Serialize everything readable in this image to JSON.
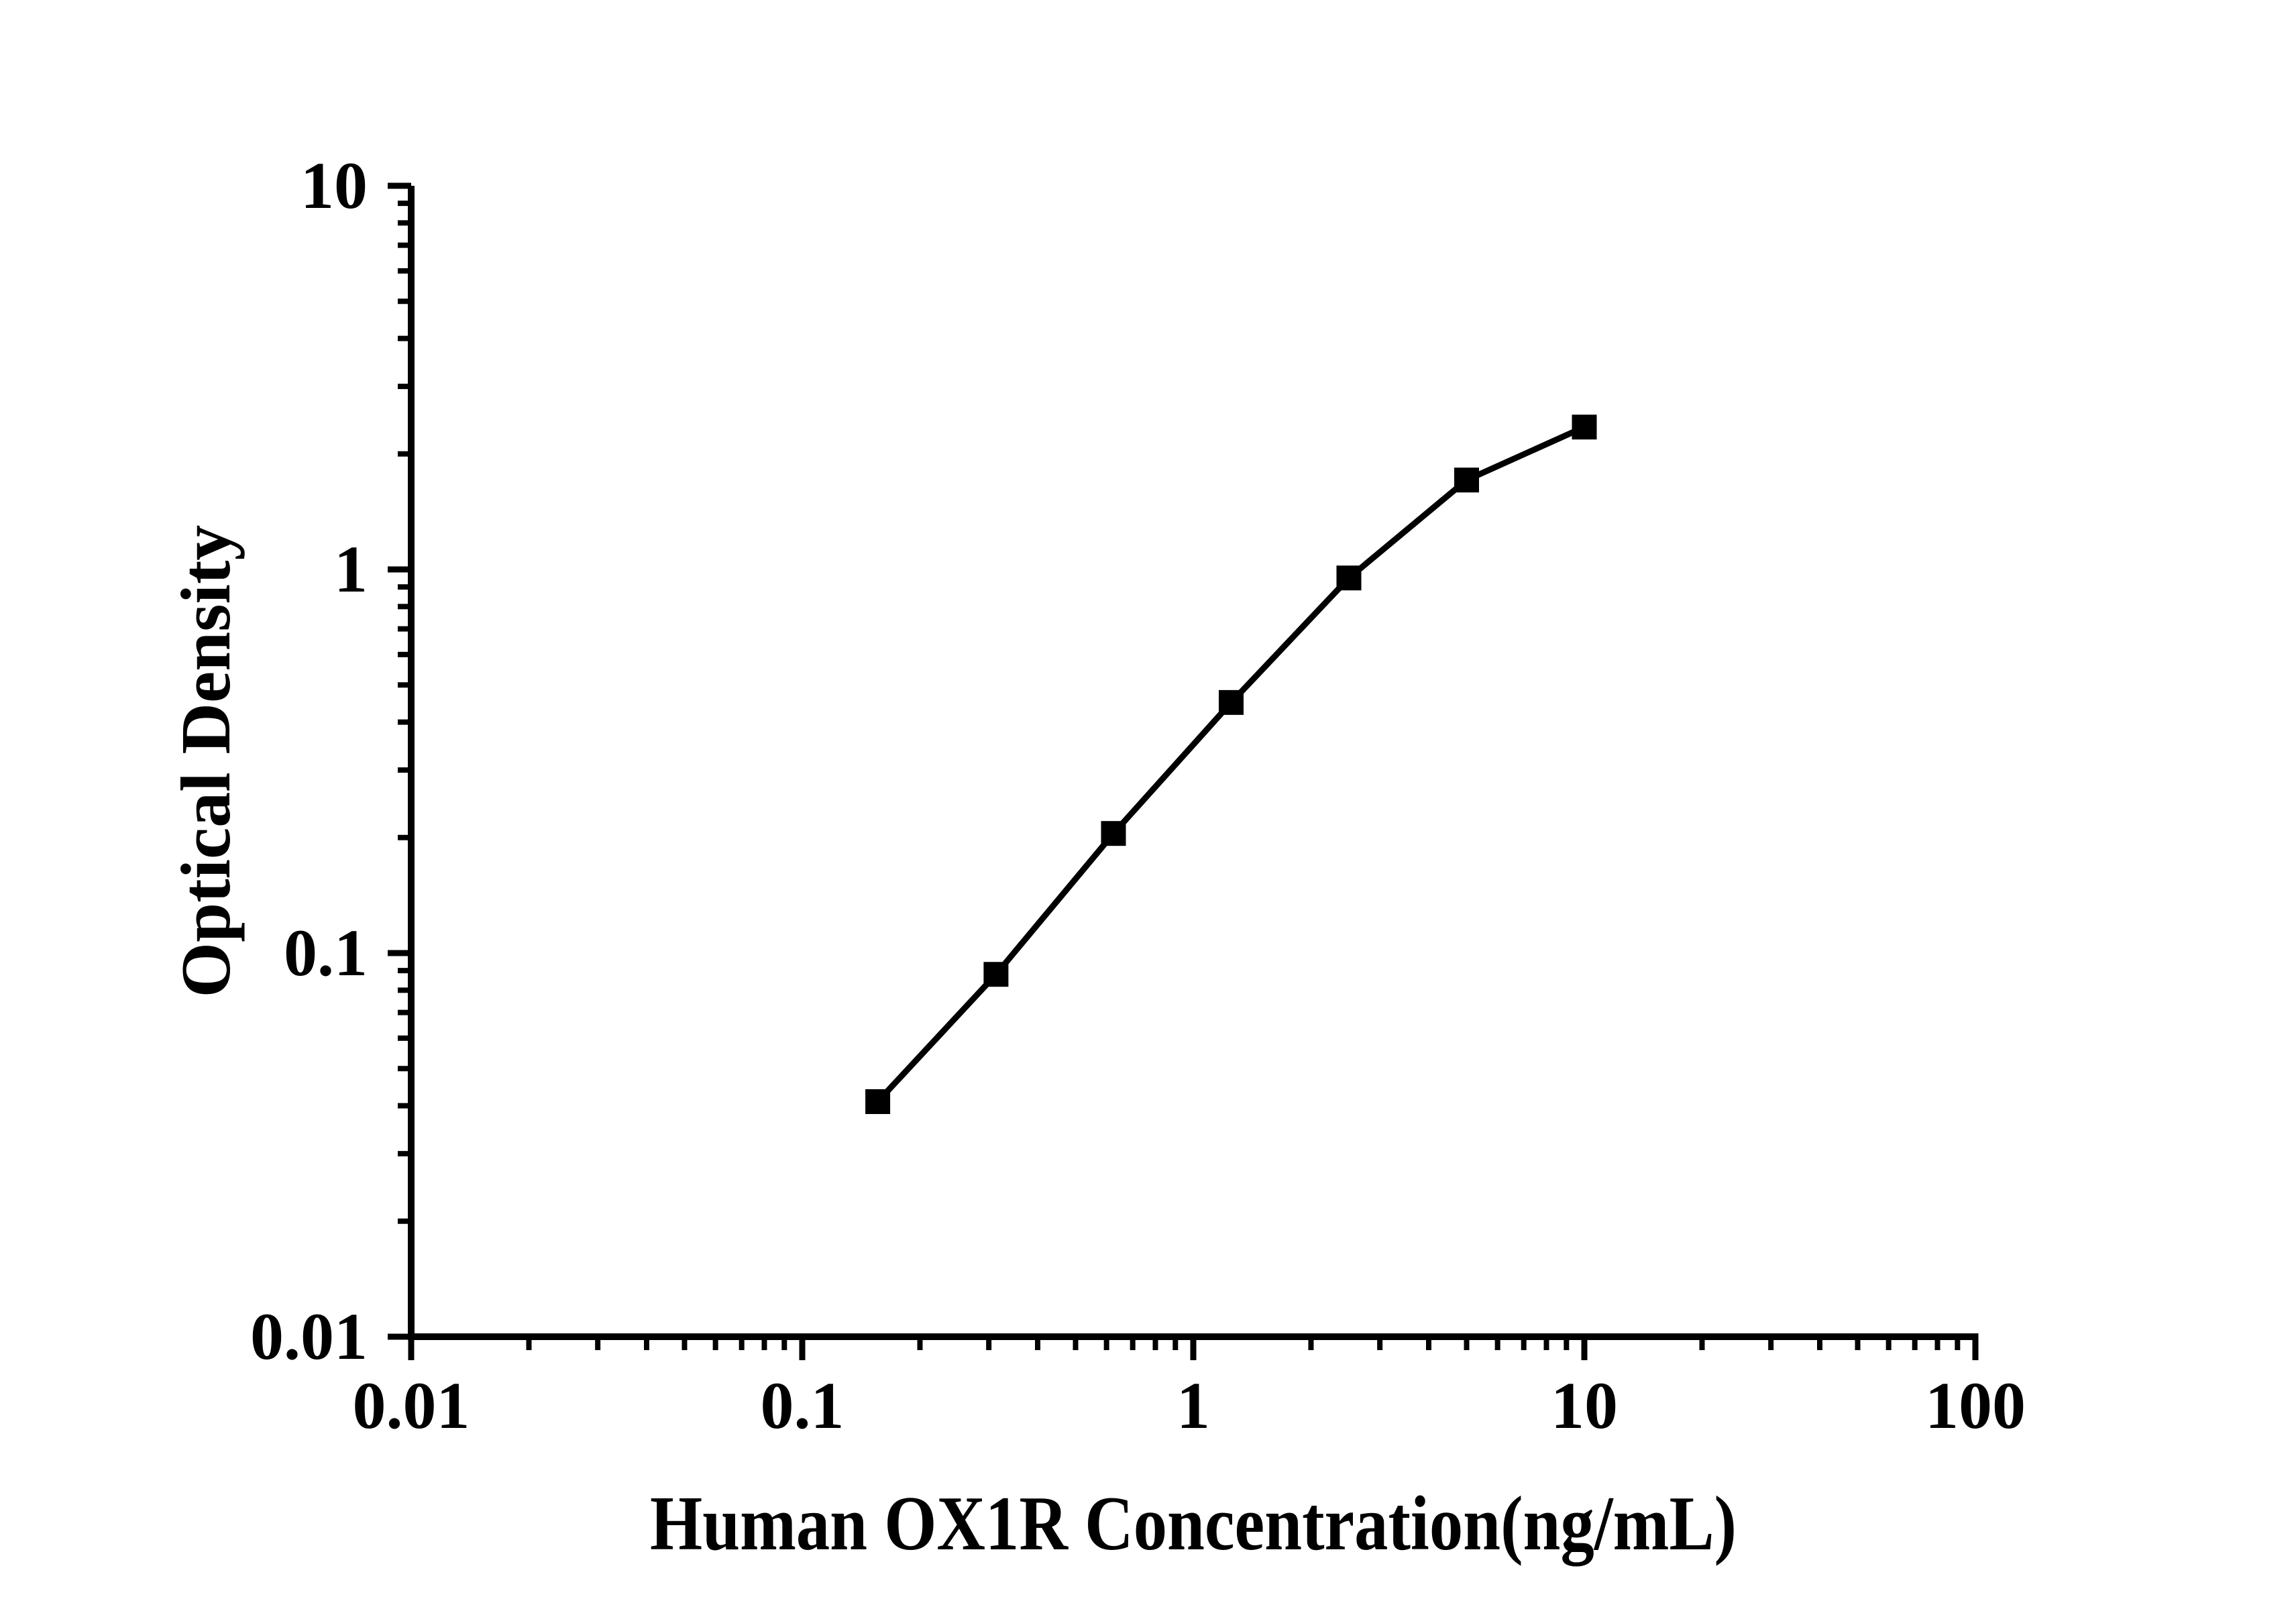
{
  "page": {
    "background": "#ffffff"
  },
  "figure": {
    "description": "ELISA standard curve, black line with filled square markers on white, log-log axes, left and bottom spines only"
  },
  "chart_data": {
    "type": "line",
    "title": "",
    "xlabel": "Human OX1R Concentration(ng/mL)",
    "ylabel": "Optical Density",
    "x_scale": "log10",
    "y_scale": "log10",
    "xlim": [
      0.01,
      100
    ],
    "ylim": [
      0.01,
      10
    ],
    "x_major_ticks": [
      0.01,
      0.1,
      1,
      10,
      100
    ],
    "x_tick_labels": [
      "0.01",
      "0.1",
      "1",
      "10",
      "100"
    ],
    "y_major_ticks": [
      0.01,
      0.1,
      1,
      10
    ],
    "y_tick_labels": [
      "0.01",
      "0.1",
      "1",
      "10"
    ],
    "minor_tick_multiples": [
      2,
      3,
      4,
      5,
      6,
      7,
      8,
      9
    ],
    "grid": false,
    "legend": null,
    "frame": "left-bottom-spines-ticks-outside",
    "marker": "filled-square",
    "colors": {
      "axis": "#000000",
      "line": "#000000",
      "marker": "#000000",
      "background": "#ffffff"
    },
    "series": [
      {
        "name": "standard-curve",
        "x": [
          0.156,
          0.313,
          0.625,
          1.25,
          2.5,
          5,
          10
        ],
        "y": [
          0.041,
          0.088,
          0.205,
          0.45,
          0.95,
          1.71,
          2.35
        ]
      }
    ]
  }
}
